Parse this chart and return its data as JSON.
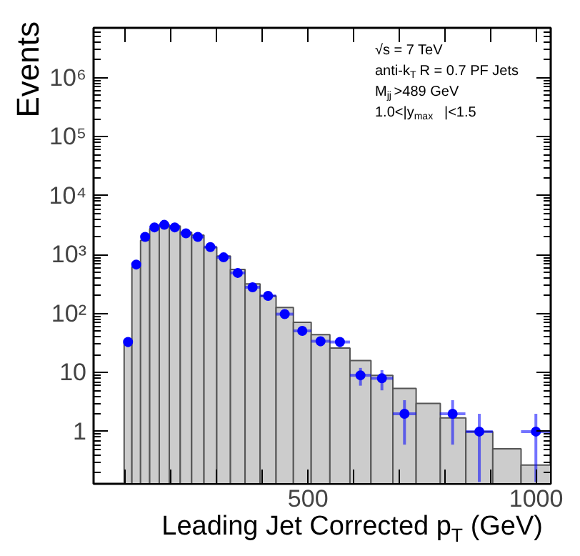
{
  "chart_data": {
    "type": "histogram",
    "xlabel": "Leading Jet Corrected p$_{T}$ (GeV)",
    "ylabel": "Events",
    "annotations": [
      "√s = 7 TeV",
      "anti-k$_{T}$ R = 0.7 PF Jets",
      "M$_{jj}$ >489 GeV",
      "1.0<|y$_{max}$|<1.5"
    ],
    "log": "y",
    "grid": false,
    "marker": "circle",
    "xlim": [
      30,
      1032
    ],
    "ylim": [
      0.13,
      7000000
    ],
    "xticks": [
      {
        "value": 100,
        "label": null
      },
      {
        "value": 200,
        "label": null
      },
      {
        "value": 300,
        "label": null
      },
      {
        "value": 400,
        "label": null
      },
      500,
      {
        "value": 600,
        "label": null
      },
      {
        "value": 700,
        "label": null
      },
      {
        "value": 800,
        "label": null
      },
      {
        "value": 900,
        "label": null
      },
      1000
    ],
    "yticks": [
      1,
      10,
      {
        "value": 100,
        "label": "10²"
      },
      {
        "value": 1000,
        "label": "10³"
      },
      {
        "value": 10000,
        "label": "10⁴"
      },
      {
        "value": 100000,
        "label": "10⁵"
      },
      {
        "value": 1000000,
        "label": "10⁶"
      }
    ],
    "series": [
      {
        "type": "histogram",
        "color": "#cccccc",
        "bins": [
          97,
          114,
          133,
          153,
          174,
          196,
          220,
          245,
          272,
          300,
          330,
          362,
          395,
          430,
          468,
          507,
          548,
          592,
          638,
          686,
          737,
          790,
          846,
          905,
          967,
          1032
        ],
        "values": [
          33,
          620,
          1750,
          2750,
          3200,
          3050,
          2400,
          2150,
          1340,
          950,
          560,
          320,
          200,
          127,
          71,
          44,
          26,
          16,
          9,
          5.4,
          3.0,
          1.7,
          1.0,
          0.51,
          0.27
        ]
      },
      {
        "type": "scatter",
        "color": "#0000ff",
        "x": [
          105.5,
          123.5,
          143,
          163.5,
          185,
          208,
          232.5,
          258.5,
          286,
          315,
          346,
          378.5,
          412.5,
          449,
          487.5,
          527.5,
          570,
          615,
          662,
          711.5,
          817,
          875.5,
          999.5
        ],
        "values": [
          33,
          680,
          2000,
          2900,
          3200,
          2900,
          2300,
          2000,
          1340,
          900,
          490,
          280,
          200,
          98,
          51,
          34,
          33,
          9,
          8,
          2,
          2,
          1,
          1
        ],
        "errors": [
          6,
          26,
          45,
          54,
          57,
          54,
          48,
          45,
          37,
          30,
          22,
          17,
          14,
          10,
          7,
          6,
          6,
          [
            6,
            12
          ],
          [
            5,
            11
          ],
          [
            0.6,
            3.4
          ],
          [
            0.6,
            3.4
          ],
          [
            0.14,
            2
          ],
          [
            0.14,
            2
          ]
        ],
        "xerrors": [
          8.5,
          9.5,
          10,
          10.5,
          11,
          12,
          12.5,
          13.5,
          14,
          15,
          16,
          16.5,
          17.5,
          19,
          19.5,
          20.5,
          22,
          23,
          24,
          25.5,
          28,
          29.5,
          32.5
        ]
      }
    ]
  }
}
